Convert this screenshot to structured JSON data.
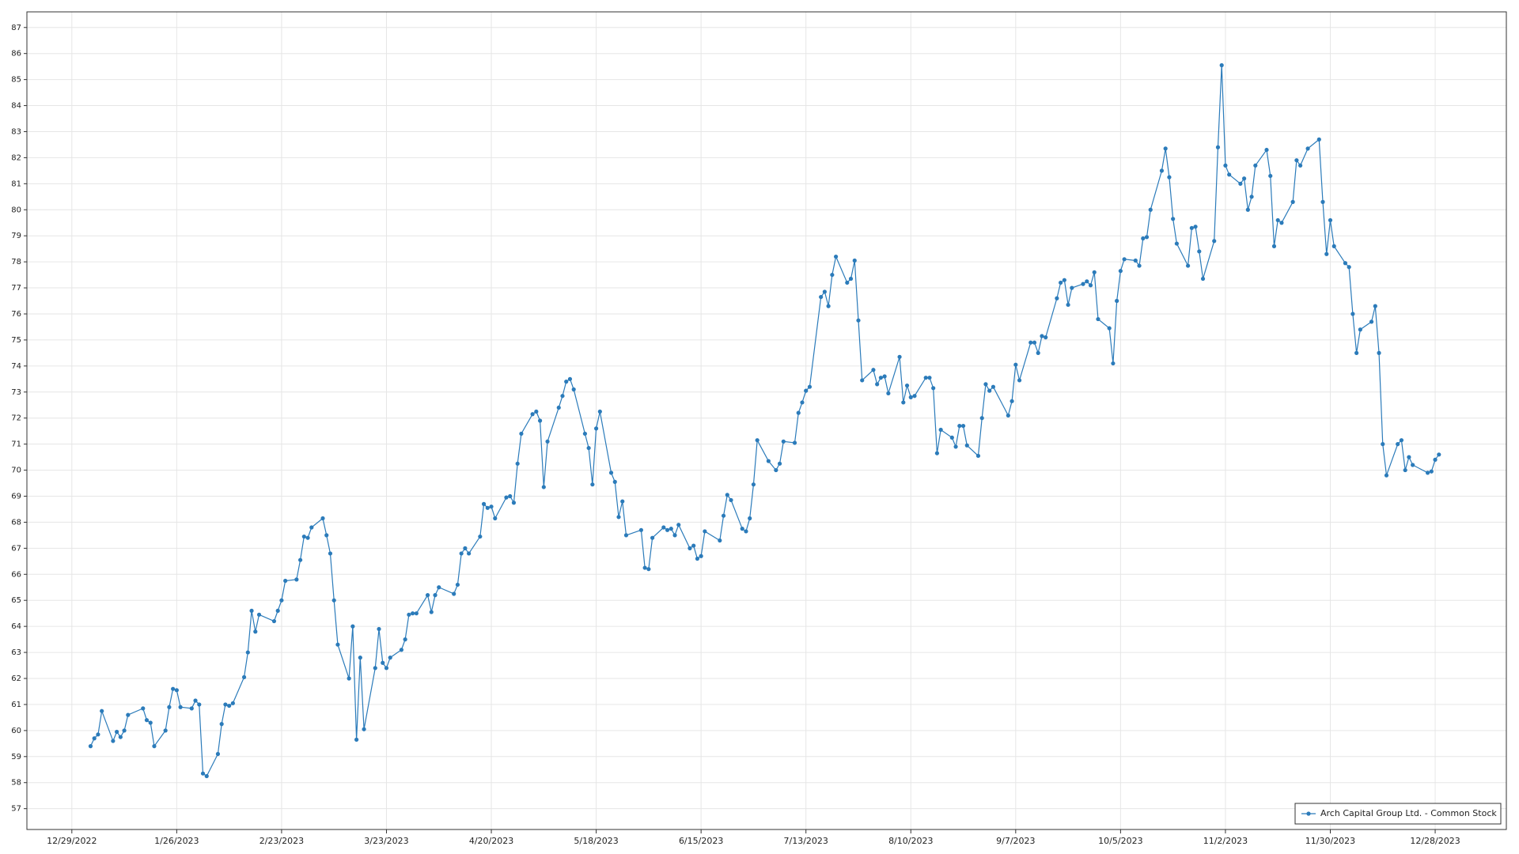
{
  "chart_data": {
    "type": "line",
    "x": [
      "2023-01-03",
      "2023-01-04",
      "2023-01-05",
      "2023-01-06",
      "2023-01-09",
      "2023-01-10",
      "2023-01-11",
      "2023-01-12",
      "2023-01-13",
      "2023-01-17",
      "2023-01-18",
      "2023-01-19",
      "2023-01-20",
      "2023-01-23",
      "2023-01-24",
      "2023-01-25",
      "2023-01-26",
      "2023-01-27",
      "2023-01-30",
      "2023-01-31",
      "2023-02-01",
      "2023-02-02",
      "2023-02-03",
      "2023-02-06",
      "2023-02-07",
      "2023-02-08",
      "2023-02-09",
      "2023-02-10",
      "2023-02-13",
      "2023-02-14",
      "2023-02-15",
      "2023-02-16",
      "2023-02-17",
      "2023-02-21",
      "2023-02-22",
      "2023-02-23",
      "2023-02-24",
      "2023-02-27",
      "2023-02-28",
      "2023-03-01",
      "2023-03-02",
      "2023-03-03",
      "2023-03-06",
      "2023-03-07",
      "2023-03-08",
      "2023-03-09",
      "2023-03-10",
      "2023-03-13",
      "2023-03-14",
      "2023-03-15",
      "2023-03-16",
      "2023-03-17",
      "2023-03-20",
      "2023-03-21",
      "2023-03-22",
      "2023-03-23",
      "2023-03-24",
      "2023-03-27",
      "2023-03-28",
      "2023-03-29",
      "2023-03-30",
      "2023-03-31",
      "2023-04-03",
      "2023-04-04",
      "2023-04-05",
      "2023-04-06",
      "2023-04-10",
      "2023-04-11",
      "2023-04-12",
      "2023-04-13",
      "2023-04-14",
      "2023-04-17",
      "2023-04-18",
      "2023-04-19",
      "2023-04-20",
      "2023-04-21",
      "2023-04-24",
      "2023-04-25",
      "2023-04-26",
      "2023-04-27",
      "2023-04-28",
      "2023-05-01",
      "2023-05-02",
      "2023-05-03",
      "2023-05-04",
      "2023-05-05",
      "2023-05-08",
      "2023-05-09",
      "2023-05-10",
      "2023-05-11",
      "2023-05-12",
      "2023-05-15",
      "2023-05-16",
      "2023-05-17",
      "2023-05-18",
      "2023-05-19",
      "2023-05-22",
      "2023-05-23",
      "2023-05-24",
      "2023-05-25",
      "2023-05-26",
      "2023-05-30",
      "2023-05-31",
      "2023-06-01",
      "2023-06-02",
      "2023-06-05",
      "2023-06-06",
      "2023-06-07",
      "2023-06-08",
      "2023-06-09",
      "2023-06-12",
      "2023-06-13",
      "2023-06-14",
      "2023-06-15",
      "2023-06-16",
      "2023-06-20",
      "2023-06-21",
      "2023-06-22",
      "2023-06-23",
      "2023-06-26",
      "2023-06-27",
      "2023-06-28",
      "2023-06-29",
      "2023-06-30",
      "2023-07-03",
      "2023-07-05",
      "2023-07-06",
      "2023-07-07",
      "2023-07-10",
      "2023-07-11",
      "2023-07-12",
      "2023-07-13",
      "2023-07-14",
      "2023-07-17",
      "2023-07-18",
      "2023-07-19",
      "2023-07-20",
      "2023-07-21",
      "2023-07-24",
      "2023-07-25",
      "2023-07-26",
      "2023-07-27",
      "2023-07-28",
      "2023-07-31",
      "2023-08-01",
      "2023-08-02",
      "2023-08-03",
      "2023-08-04",
      "2023-08-07",
      "2023-08-08",
      "2023-08-09",
      "2023-08-10",
      "2023-08-11",
      "2023-08-14",
      "2023-08-15",
      "2023-08-16",
      "2023-08-17",
      "2023-08-18",
      "2023-08-21",
      "2023-08-22",
      "2023-08-23",
      "2023-08-24",
      "2023-08-25",
      "2023-08-28",
      "2023-08-29",
      "2023-08-30",
      "2023-08-31",
      "2023-09-01",
      "2023-09-05",
      "2023-09-06",
      "2023-09-07",
      "2023-09-08",
      "2023-09-11",
      "2023-09-12",
      "2023-09-13",
      "2023-09-14",
      "2023-09-15",
      "2023-09-18",
      "2023-09-19",
      "2023-09-20",
      "2023-09-21",
      "2023-09-22",
      "2023-09-25",
      "2023-09-26",
      "2023-09-27",
      "2023-09-28",
      "2023-09-29",
      "2023-10-02",
      "2023-10-03",
      "2023-10-04",
      "2023-10-05",
      "2023-10-06",
      "2023-10-09",
      "2023-10-10",
      "2023-10-11",
      "2023-10-12",
      "2023-10-13",
      "2023-10-16",
      "2023-10-17",
      "2023-10-18",
      "2023-10-19",
      "2023-10-20",
      "2023-10-23",
      "2023-10-24",
      "2023-10-25",
      "2023-10-26",
      "2023-10-27",
      "2023-10-30",
      "2023-10-31",
      "2023-11-01",
      "2023-11-02",
      "2023-11-03",
      "2023-11-06",
      "2023-11-07",
      "2023-11-08",
      "2023-11-09",
      "2023-11-10",
      "2023-11-13",
      "2023-11-14",
      "2023-11-15",
      "2023-11-16",
      "2023-11-17",
      "2023-11-20",
      "2023-11-21",
      "2023-11-22",
      "2023-11-24",
      "2023-11-27",
      "2023-11-28",
      "2023-11-29",
      "2023-11-30",
      "2023-12-01",
      "2023-12-04",
      "2023-12-05",
      "2023-12-06",
      "2023-12-07",
      "2023-12-08",
      "2023-12-11",
      "2023-12-12",
      "2023-12-13",
      "2023-12-14",
      "2023-12-15",
      "2023-12-18",
      "2023-12-19",
      "2023-12-20",
      "2023-12-21",
      "2023-12-22",
      "2023-12-26",
      "2023-12-27",
      "2023-12-28",
      "2023-12-29"
    ],
    "series": [
      {
        "name": "Arch Capital Group Ltd. - Common Stock",
        "color": "#2b7bba",
        "values": [
          59.4,
          59.7,
          59.85,
          60.75,
          59.6,
          59.95,
          59.75,
          60.0,
          60.6,
          60.85,
          60.4,
          60.3,
          59.4,
          60.0,
          60.9,
          61.6,
          61.55,
          60.9,
          60.85,
          61.15,
          61.0,
          58.35,
          58.25,
          59.1,
          60.25,
          61.0,
          60.95,
          61.05,
          62.05,
          63.0,
          64.6,
          63.8,
          64.45,
          64.2,
          64.6,
          65.0,
          65.75,
          65.8,
          66.55,
          67.45,
          67.4,
          67.8,
          68.15,
          67.5,
          66.8,
          65.0,
          63.3,
          62.0,
          64.0,
          59.65,
          62.8,
          60.05,
          62.4,
          63.9,
          62.6,
          62.4,
          62.8,
          63.1,
          63.5,
          64.45,
          64.5,
          64.5,
          65.2,
          64.55,
          65.2,
          65.5,
          65.25,
          65.6,
          66.8,
          67.0,
          66.8,
          67.45,
          68.7,
          68.55,
          68.6,
          68.15,
          68.95,
          69.0,
          68.75,
          70.25,
          71.4,
          72.15,
          72.25,
          71.9,
          69.35,
          71.1,
          72.4,
          72.85,
          73.4,
          73.5,
          73.1,
          71.4,
          70.85,
          69.45,
          71.6,
          72.25,
          69.9,
          69.55,
          68.2,
          68.8,
          67.5,
          67.7,
          66.25,
          66.2,
          67.4,
          67.8,
          67.7,
          67.75,
          67.5,
          67.9,
          67.0,
          67.1,
          66.6,
          66.7,
          67.65,
          67.3,
          68.25,
          69.05,
          68.85,
          67.75,
          67.65,
          68.15,
          69.45,
          71.15,
          70.35,
          70.0,
          70.25,
          71.1,
          71.05,
          72.2,
          72.6,
          73.05,
          73.2,
          76.65,
          76.85,
          76.3,
          77.5,
          78.2,
          77.2,
          77.35,
          78.05,
          75.75,
          73.45,
          73.85,
          73.3,
          73.55,
          73.6,
          72.95,
          74.35,
          72.6,
          73.25,
          72.8,
          72.85,
          73.55,
          73.55,
          73.15,
          70.65,
          71.55,
          71.25,
          70.9,
          71.7,
          71.7,
          70.95,
          70.55,
          72.0,
          73.3,
          73.05,
          73.2,
          72.1,
          72.65,
          74.05,
          73.45,
          74.9,
          74.9,
          74.5,
          75.15,
          75.1,
          76.6,
          77.2,
          77.3,
          76.35,
          77.0,
          77.15,
          77.25,
          77.1,
          77.6,
          75.8,
          75.45,
          74.1,
          76.5,
          77.65,
          78.1,
          78.05,
          77.85,
          78.9,
          78.95,
          80.0,
          81.5,
          82.35,
          81.25,
          79.65,
          78.7,
          77.85,
          79.3,
          79.35,
          78.4,
          77.35,
          78.8,
          82.4,
          85.55,
          81.7,
          81.35,
          81.0,
          81.2,
          80.0,
          80.5,
          81.7,
          82.3,
          81.3,
          78.6,
          79.6,
          79.5,
          80.3,
          81.9,
          81.7,
          82.35,
          82.7,
          80.3,
          78.3,
          79.6,
          78.6,
          77.95,
          77.8,
          76.0,
          74.5,
          75.4,
          75.7,
          76.3,
          74.5,
          71.0,
          69.8,
          71.0,
          71.15,
          70.0,
          70.5,
          70.2,
          69.9,
          69.95,
          70.4,
          70.6
        ]
      }
    ],
    "xlim": [
      "2022-12-17",
      "2024-01-16"
    ],
    "xticks": [
      {
        "value": "2022-12-29",
        "label": "12/29/2022"
      },
      {
        "value": "2023-01-26",
        "label": "1/26/2023"
      },
      {
        "value": "2023-02-23",
        "label": "2/23/2023"
      },
      {
        "value": "2023-03-23",
        "label": "3/23/2023"
      },
      {
        "value": "2023-04-20",
        "label": "4/20/2023"
      },
      {
        "value": "2023-05-18",
        "label": "5/18/2023"
      },
      {
        "value": "2023-06-15",
        "label": "6/15/2023"
      },
      {
        "value": "2023-07-13",
        "label": "7/13/2023"
      },
      {
        "value": "2023-08-10",
        "label": "8/10/2023"
      },
      {
        "value": "2023-09-07",
        "label": "9/7/2023"
      },
      {
        "value": "2023-10-05",
        "label": "10/5/2023"
      },
      {
        "value": "2023-11-02",
        "label": "11/2/2023"
      },
      {
        "value": "2023-11-30",
        "label": "11/30/2023"
      },
      {
        "value": "2023-12-28",
        "label": "12/28/2023"
      }
    ],
    "ylim": [
      56.2,
      87.6
    ],
    "yticks": [
      57,
      58,
      59,
      60,
      61,
      62,
      63,
      64,
      65,
      66,
      67,
      68,
      69,
      70,
      71,
      72,
      73,
      74,
      75,
      76,
      77,
      78,
      79,
      80,
      81,
      82,
      83,
      84,
      85,
      86,
      87
    ],
    "grid": true,
    "legend": "lower right"
  }
}
